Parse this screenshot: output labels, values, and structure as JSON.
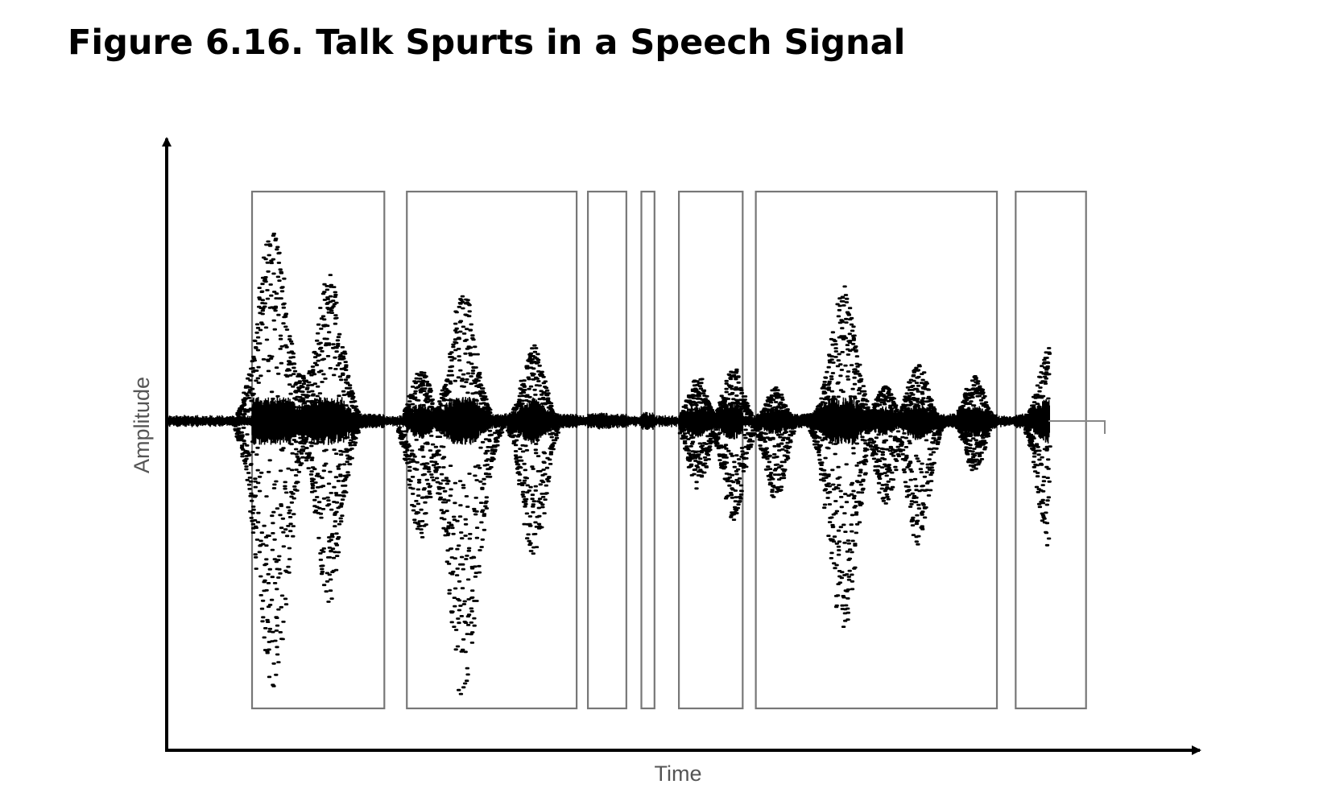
{
  "figure": {
    "title": "Figure 6.16. Talk Spurts in a Speech Signal"
  },
  "axes": {
    "x_label": "Time",
    "y_label": "Amplitude"
  },
  "signal": {
    "waveform_color": "#000000",
    "box_color": "#777777",
    "talk_spurts": [
      {
        "start": 0.091,
        "end": 0.232,
        "bursts": [
          {
            "t": 0.112,
            "up": 0.86,
            "down": 0.95
          },
          {
            "t": 0.143,
            "up": 0.22,
            "down": 0.08
          },
          {
            "t": 0.172,
            "up": 0.66,
            "down": 0.64
          }
        ]
      },
      {
        "start": 0.256,
        "end": 0.437,
        "bursts": [
          {
            "t": 0.27,
            "up": 0.23,
            "down": 0.42
          },
          {
            "t": 0.315,
            "up": 0.57,
            "down": 0.98
          },
          {
            "t": 0.39,
            "up": 0.34,
            "down": 0.48
          }
        ]
      },
      {
        "start": 0.449,
        "end": 0.49,
        "bursts": [
          {
            "t": 0.464,
            "up": 0.03,
            "down": 0.02
          }
        ]
      },
      {
        "start": 0.506,
        "end": 0.52,
        "bursts": [
          {
            "t": 0.513,
            "up": 0.04,
            "down": 0.01
          }
        ]
      },
      {
        "start": 0.546,
        "end": 0.614,
        "bursts": [
          {
            "t": 0.565,
            "up": 0.2,
            "down": 0.25
          },
          {
            "t": 0.603,
            "up": 0.24,
            "down": 0.36
          }
        ]
      },
      {
        "start": 0.628,
        "end": 0.885,
        "bursts": [
          {
            "t": 0.648,
            "up": 0.15,
            "down": 0.28
          },
          {
            "t": 0.72,
            "up": 0.6,
            "down": 0.76
          },
          {
            "t": 0.765,
            "up": 0.16,
            "down": 0.3
          },
          {
            "t": 0.8,
            "up": 0.26,
            "down": 0.44
          },
          {
            "t": 0.86,
            "up": 0.2,
            "down": 0.18
          }
        ]
      },
      {
        "start": 0.905,
        "end": 0.98,
        "bursts": [
          {
            "t": 0.94,
            "up": 0.33,
            "down": 0.45
          }
        ]
      }
    ]
  }
}
